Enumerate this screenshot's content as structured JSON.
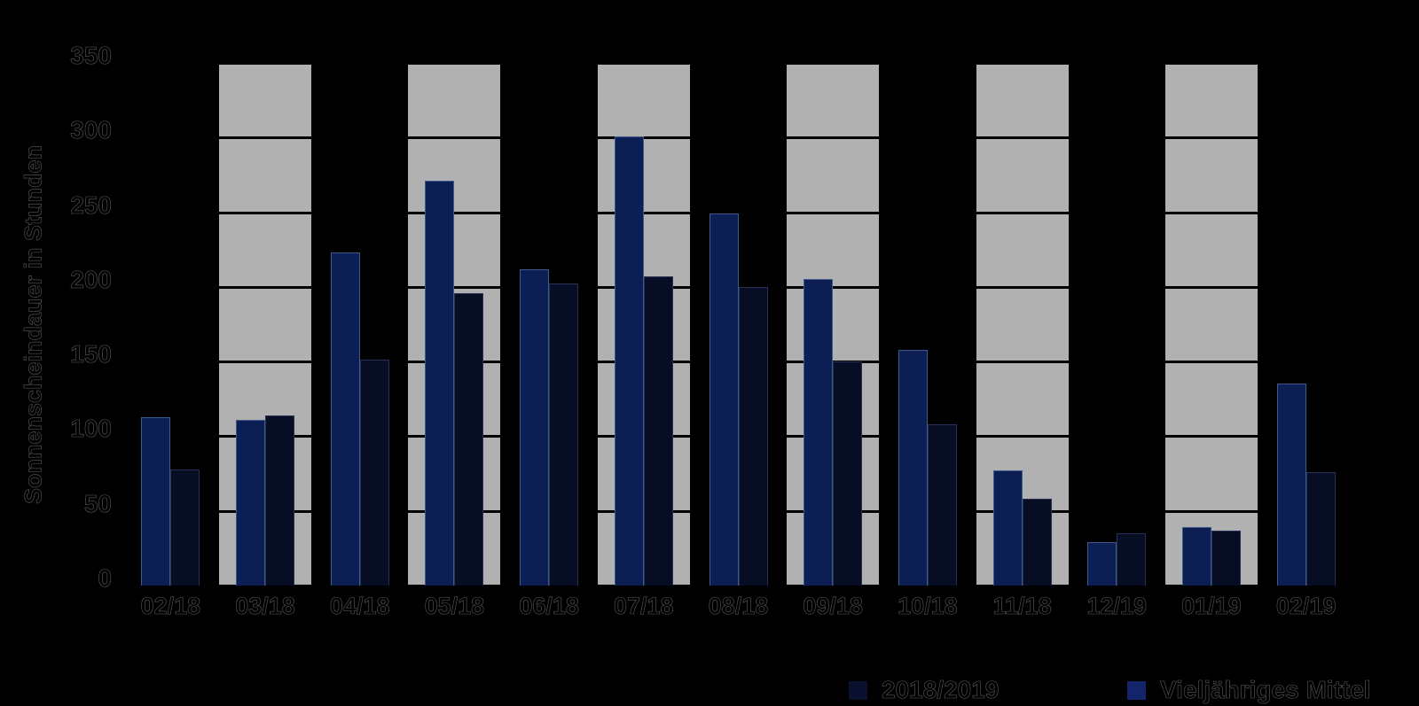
{
  "chart_data": {
    "type": "bar",
    "title": "",
    "xlabel": "",
    "ylabel": "Sonnenscheindauer in Stunden",
    "ylim": [
      0,
      350
    ],
    "yticks": [
      0,
      50,
      100,
      150,
      200,
      250,
      300,
      350
    ],
    "grid": true,
    "legend_position": "bottom-right",
    "categories": [
      "02/18",
      "03/18",
      "04/18",
      "05/18",
      "06/18",
      "07/18",
      "08/18",
      "09/18",
      "10/18",
      "11/18",
      "12/19",
      "01/19",
      "02/19"
    ],
    "series": [
      {
        "name": "2018/2019",
        "position": "left",
        "color": "#0d1e55",
        "border_color": "#3d5a8c",
        "values": [
          113,
          111,
          223,
          271,
          212,
          301,
          249,
          205,
          158,
          77,
          29,
          39,
          135
        ]
      },
      {
        "name": "Vieljähriges Mittel",
        "position": "right",
        "color": "#070d22",
        "border_color": "#273055",
        "values": [
          78,
          114,
          151,
          196,
          202,
          207,
          200,
          150,
          108,
          58,
          35,
          37,
          76
        ]
      }
    ],
    "legend": [
      {
        "label": "2018/2019",
        "swatch_color": "#0a1030"
      },
      {
        "label": "Vieljähriges Mittel",
        "swatch_color": "#13246a"
      }
    ],
    "background_columns": {
      "categories": [
        "03/18",
        "05/18",
        "07/18",
        "09/18",
        "11/18",
        "01/19"
      ],
      "color": "#b1b1b1"
    },
    "colors": {
      "background": "#000000",
      "gridline": "#000000",
      "axis": "#000000",
      "text": "#000000"
    }
  }
}
